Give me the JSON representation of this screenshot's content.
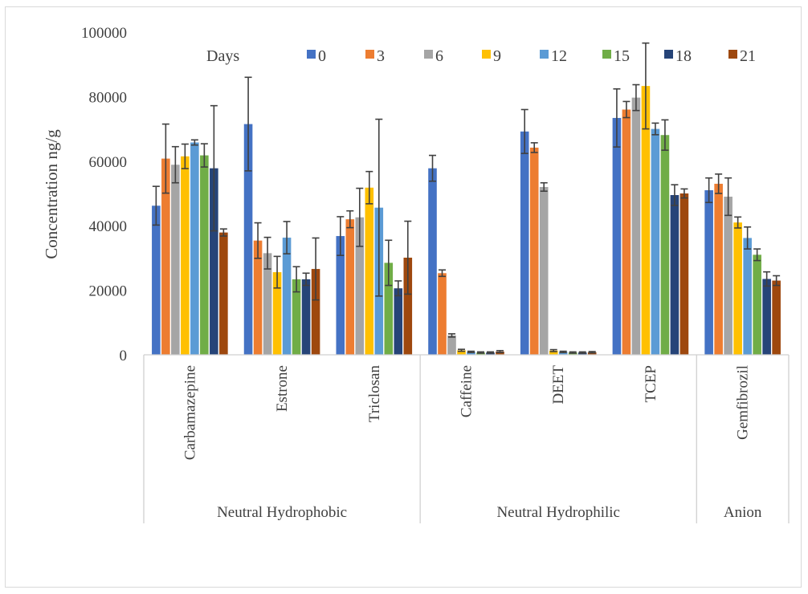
{
  "chart_data": {
    "type": "bar",
    "title": "",
    "ylabel": "Concentration ng/g",
    "xlabel": "",
    "ylim": [
      0,
      100000
    ],
    "yticks": [
      0,
      20000,
      40000,
      60000,
      80000,
      100000
    ],
    "grid": false,
    "legend": {
      "title": "Days",
      "position": "top"
    },
    "categories": [
      "Carbamazepine",
      "Estrone",
      "Triclosan",
      "Caffeine",
      "DEET",
      "TCEP",
      "Gemfibrozil"
    ],
    "groups": [
      {
        "label": "Neutral Hydrophobic",
        "categories": [
          "Carbamazepine",
          "Estrone",
          "Triclosan"
        ]
      },
      {
        "label": "Neutral Hydrophilic",
        "categories": [
          "Caffeine",
          "DEET",
          "TCEP"
        ]
      },
      {
        "label": "Anion",
        "categories": [
          "Gemfibrozil"
        ]
      }
    ],
    "series": [
      {
        "name": "0",
        "color": "#4472C4",
        "values": [
          46200,
          71500,
          36800,
          57800,
          69200,
          73400,
          51000
        ],
        "errors": [
          6000,
          14500,
          6000,
          4000,
          6800,
          9000,
          3800
        ]
      },
      {
        "name": "3",
        "color": "#ED7D31",
        "values": [
          60800,
          35400,
          42000,
          25300,
          64200,
          76000,
          53000
        ],
        "errors": [
          10700,
          5500,
          2600,
          1000,
          1500,
          2500,
          3000
        ]
      },
      {
        "name": "6",
        "color": "#A5A5A5",
        "values": [
          58900,
          31500,
          42600,
          6000,
          52000,
          79700,
          49000
        ],
        "errors": [
          5600,
          4900,
          9000,
          500,
          1300,
          4000,
          5800
        ]
      },
      {
        "name": "9",
        "color": "#FFC000",
        "values": [
          61500,
          25600,
          51800,
          1400,
          1300,
          83300,
          41000
        ],
        "errors": [
          3800,
          4900,
          5000,
          300,
          300,
          13300,
          1700
        ]
      },
      {
        "name": "12",
        "color": "#5B9BD5",
        "values": [
          65800,
          36300,
          45600,
          900,
          900,
          70000,
          36200
        ],
        "errors": [
          800,
          5000,
          27400,
          200,
          200,
          1800,
          3400
        ]
      },
      {
        "name": "15",
        "color": "#70AD47",
        "values": [
          61800,
          23400,
          28500,
          700,
          700,
          68100,
          31000
        ],
        "errors": [
          3600,
          3900,
          7000,
          200,
          200,
          4700,
          1800
        ]
      },
      {
        "name": "18",
        "color": "#264478",
        "values": [
          57800,
          23400,
          20600,
          700,
          700,
          49500,
          23500
        ],
        "errors": [
          19400,
          1900,
          2300,
          200,
          200,
          3200,
          2200
        ]
      },
      {
        "name": "21",
        "color": "#9E480E",
        "values": [
          37900,
          26600,
          30100,
          1000,
          800,
          50000,
          23000
        ],
        "errors": [
          1100,
          9600,
          11300,
          300,
          200,
          1400,
          1500
        ]
      }
    ]
  }
}
